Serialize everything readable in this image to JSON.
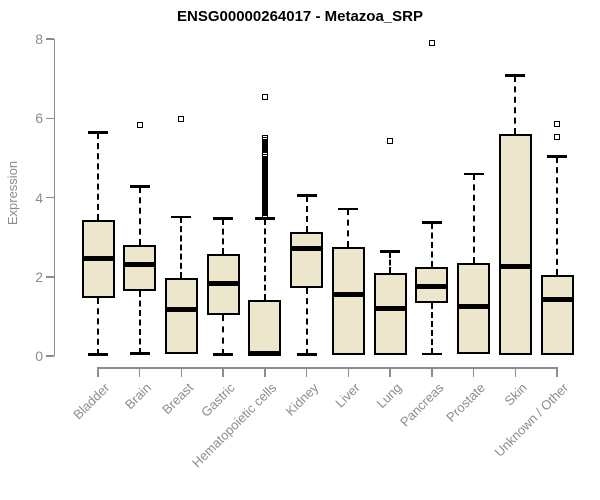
{
  "title": "ENSG00000264017 - Metazoa_SRP",
  "chart_data": {
    "type": "boxplot",
    "title": "ENSG00000264017 - Metazoa_SRP",
    "xlabel": "",
    "ylabel": "Expression",
    "ylim": [
      0,
      8
    ],
    "yticks": [
      0,
      2,
      4,
      6,
      8
    ],
    "grid": false,
    "legend": false,
    "categories": [
      "Bladder",
      "Brain",
      "Breast",
      "Gastric",
      "Hematopoietic cells",
      "Kidney",
      "Liver",
      "Lung",
      "Pancreas",
      "Prostate",
      "Skin",
      "Unknown / Other"
    ],
    "series": [
      {
        "category": "Bladder",
        "whisker_low": 0.03,
        "q1": 1.46,
        "median": 2.47,
        "q3": 3.43,
        "whisker_high": 5.63,
        "outliers": []
      },
      {
        "category": "Brain",
        "whisker_low": 0.06,
        "q1": 1.65,
        "median": 2.3,
        "q3": 2.79,
        "whisker_high": 4.27,
        "outliers": [
          5.83
        ]
      },
      {
        "category": "Breast",
        "whisker_low": null,
        "q1": 0.05,
        "median": 1.17,
        "q3": 1.97,
        "whisker_high": 3.5,
        "outliers": [
          5.97
        ]
      },
      {
        "category": "Gastric",
        "whisker_low": 0.03,
        "q1": 1.03,
        "median": 1.83,
        "q3": 2.58,
        "whisker_high": 3.47,
        "outliers": []
      },
      {
        "category": "Hematopoietic cells",
        "whisker_low": null,
        "q1": 0.03,
        "median": 0.07,
        "q3": 1.41,
        "whisker_high": 3.46,
        "outliers": [
          3.51,
          3.56,
          3.61,
          3.66,
          3.71,
          3.76,
          3.81,
          3.86,
          3.91,
          3.96,
          4.01,
          4.06,
          4.11,
          4.16,
          4.21,
          4.26,
          4.31,
          4.36,
          4.41,
          4.46,
          4.51,
          4.56,
          4.61,
          4.66,
          4.71,
          4.76,
          4.81,
          4.86,
          4.91,
          4.96,
          5.01,
          5.06,
          5.11,
          5.16,
          5.21,
          5.26,
          5.31,
          5.36,
          5.41,
          5.46,
          5.5,
          6.53
        ]
      },
      {
        "category": "Kidney",
        "whisker_low": 0.03,
        "q1": 1.71,
        "median": 2.72,
        "q3": 3.14,
        "whisker_high": 4.04,
        "outliers": []
      },
      {
        "category": "Liver",
        "whisker_low": null,
        "q1": 0.03,
        "median": 1.56,
        "q3": 2.76,
        "whisker_high": 3.7,
        "outliers": []
      },
      {
        "category": "Lung",
        "whisker_low": null,
        "q1": 0.03,
        "median": 1.2,
        "q3": 2.1,
        "whisker_high": 2.63,
        "outliers": [
          5.42
        ]
      },
      {
        "category": "Pancreas",
        "whisker_low": 0.05,
        "q1": 1.34,
        "median": 1.75,
        "q3": 2.24,
        "whisker_high": 3.36,
        "outliers": [
          7.91
        ]
      },
      {
        "category": "Prostate",
        "whisker_low": null,
        "q1": 0.05,
        "median": 1.24,
        "q3": 2.35,
        "whisker_high": 4.59,
        "outliers": []
      },
      {
        "category": "Skin",
        "whisker_low": null,
        "q1": 0.03,
        "median": 2.25,
        "q3": 5.6,
        "whisker_high": 7.07,
        "outliers": []
      },
      {
        "category": "Unknown / Other",
        "whisker_low": null,
        "q1": 0.03,
        "median": 1.43,
        "q3": 2.04,
        "whisker_high": 5.03,
        "outliers": [
          5.52,
          5.85
        ]
      }
    ],
    "colors": {
      "box_fill": "#ECE6CD",
      "box_border": "#000000",
      "median": "#000000",
      "whisker": "#000000",
      "outlier": "#000000",
      "axis": "#8c8c8c",
      "tick_label": "#8c8c8c",
      "title": "#000000",
      "background": "#ffffff"
    }
  }
}
